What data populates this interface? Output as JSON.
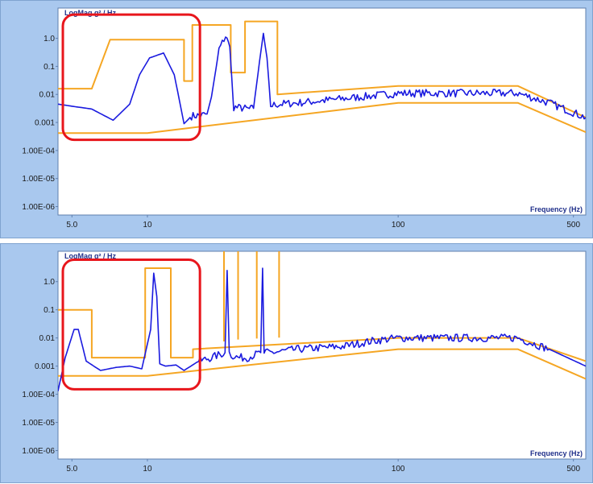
{
  "chart_data": [
    {
      "type": "line",
      "ylabel": "LogMag g² / Hz",
      "xlabel": "Frequency (Hz)",
      "x_scale": "log",
      "y_scale": "log",
      "xlim": [
        4.4,
        560
      ],
      "ylim": [
        5e-07,
        12
      ],
      "x_ticks": [
        {
          "v": 5,
          "label": "5.0"
        },
        {
          "v": 10,
          "label": "10"
        },
        {
          "v": 100,
          "label": "100"
        },
        {
          "v": 500,
          "label": "500"
        }
      ],
      "y_ticks": [
        {
          "v": 1,
          "label": "1.0"
        },
        {
          "v": 0.1,
          "label": "0.1"
        },
        {
          "v": 0.01,
          "label": "0.01"
        },
        {
          "v": 0.001,
          "label": "0.001"
        },
        {
          "v": 0.0001,
          "label": "1.00E-04"
        },
        {
          "v": 1e-05,
          "label": "1.00E-05"
        },
        {
          "v": 1e-06,
          "label": "1.00E-06"
        }
      ],
      "colors": {
        "limit": "#f5a623",
        "response": "#1a1adf",
        "highlight": "#e8161c"
      },
      "highlight_box": {
        "x": [
          4.6,
          16.2
        ],
        "y": [
          0.00024,
          7.0
        ]
      },
      "series": [
        {
          "role": "upper-limit",
          "x": [
            4.4,
            6.0,
            7.1,
            14.0,
            14.0,
            15.1,
            15.1,
            17.0,
            17.0,
            21.5,
            21.5,
            24.5,
            24.5,
            26.0,
            26.0,
            33.0,
            33.0,
            100,
            300,
            560
          ],
          "y": [
            0.016,
            0.016,
            0.9,
            0.9,
            0.03,
            0.03,
            3.0,
            3.0,
            3.0,
            3.0,
            0.06,
            0.06,
            4.0,
            4.0,
            4.0,
            4.0,
            0.01,
            0.02,
            0.02,
            0.0015
          ]
        },
        {
          "role": "lower-limit",
          "x": [
            4.4,
            10,
            100,
            300,
            560
          ],
          "y": [
            0.00042,
            0.00042,
            0.005,
            0.005,
            0.00045
          ]
        },
        {
          "role": "response",
          "x": [
            4.4,
            5.0,
            6.0,
            7.3,
            8.5,
            9.3,
            10.2,
            11.6,
            12.8,
            14.0,
            15.0,
            16.3,
            17.3,
            18.0,
            19.3,
            20.5,
            21.3,
            22.1,
            23.5,
            25.5,
            26.5,
            28.0,
            29.0,
            30.0,
            31.0,
            33.5,
            40,
            60,
            80,
            100,
            150,
            200,
            300,
            400,
            560
          ],
          "y": [
            0.0045,
            0.0038,
            0.003,
            0.0012,
            0.0045,
            0.05,
            0.2,
            0.3,
            0.05,
            0.0009,
            0.0017,
            0.0018,
            0.002,
            0.008,
            0.4,
            1.2,
            0.5,
            0.0035,
            0.0033,
            0.003,
            0.0032,
            0.15,
            1.5,
            0.2,
            0.004,
            0.0045,
            0.005,
            0.007,
            0.009,
            0.011,
            0.011,
            0.011,
            0.011,
            0.005,
            0.0015
          ]
        }
      ]
    },
    {
      "type": "line",
      "ylabel": "LogMag g² / Hz",
      "xlabel": "Frequency (Hz)",
      "x_scale": "log",
      "y_scale": "log",
      "xlim": [
        4.4,
        560
      ],
      "ylim": [
        5e-07,
        12
      ],
      "x_ticks": [
        {
          "v": 5,
          "label": "5.0"
        },
        {
          "v": 10,
          "label": "10"
        },
        {
          "v": 100,
          "label": "100"
        },
        {
          "v": 500,
          "label": "500"
        }
      ],
      "y_ticks": [
        {
          "v": 1,
          "label": "1.0"
        },
        {
          "v": 0.1,
          "label": "0.1"
        },
        {
          "v": 0.01,
          "label": "0.01"
        },
        {
          "v": 0.001,
          "label": "0.001"
        },
        {
          "v": 0.0001,
          "label": "1.00E-04"
        },
        {
          "v": 1e-05,
          "label": "1.00E-05"
        },
        {
          "v": 1e-06,
          "label": "1.00E-06"
        }
      ],
      "colors": {
        "limit": "#f5a623",
        "response": "#1a1adf",
        "highlight": "#e8161c"
      },
      "highlight_box": {
        "x": [
          4.6,
          16.2
        ],
        "y": [
          0.00015,
          6.0
        ]
      },
      "series": [
        {
          "role": "upper-limit",
          "x": [
            4.4,
            6.0,
            6.0,
            9.8,
            9.8,
            12.4,
            12.4,
            15.2,
            15.2,
            100,
            300,
            560
          ],
          "y": [
            0.1,
            0.1,
            0.002,
            0.002,
            3.0,
            3.0,
            0.002,
            0.002,
            0.004,
            0.01,
            0.01,
            0.0015
          ]
        },
        {
          "role": "upper-limit",
          "x": [
            20.2,
            20.2,
            23.0,
            23.0
          ],
          "y": [
            0.0075,
            15,
            15,
            0.0088
          ]
        },
        {
          "role": "upper-limit",
          "x": [
            27.3,
            27.3,
            33.5,
            33.5
          ],
          "y": [
            0.0095,
            18,
            18,
            0.0102
          ]
        },
        {
          "role": "lower-limit",
          "x": [
            4.4,
            10,
            100,
            300,
            560
          ],
          "y": [
            0.00045,
            0.00045,
            0.004,
            0.004,
            0.00035
          ]
        },
        {
          "role": "response",
          "x": [
            4.4,
            4.7,
            5.1,
            5.3,
            5.7,
            6.5,
            7.5,
            8.5,
            9.5,
            10.3,
            10.6,
            10.9,
            11.2,
            11.8,
            13,
            14,
            16,
            18,
            20.4,
            20.8,
            21.2,
            21.6,
            23,
            25,
            28.3,
            28.8,
            29.2,
            29.6,
            31,
            40,
            60,
            80,
            100,
            150,
            200,
            300,
            400,
            560
          ],
          "y": [
            0.00013,
            0.002,
            0.02,
            0.02,
            0.0015,
            0.0007,
            0.0009,
            0.001,
            0.0008,
            0.02,
            2.0,
            0.3,
            0.0012,
            0.001,
            0.0011,
            0.0007,
            0.0015,
            0.002,
            0.003,
            2.5,
            0.003,
            0.0025,
            0.002,
            0.002,
            0.003,
            3.0,
            0.003,
            0.003,
            0.003,
            0.004,
            0.005,
            0.008,
            0.01,
            0.01,
            0.01,
            0.01,
            0.004,
            0.001
          ]
        }
      ]
    }
  ]
}
